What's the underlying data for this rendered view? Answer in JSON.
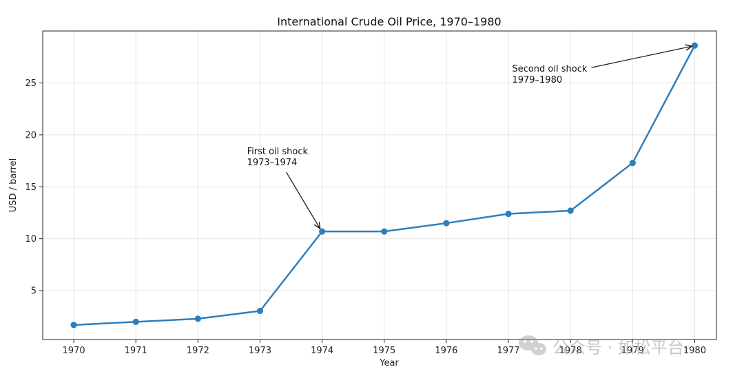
{
  "chart_data": {
    "type": "line",
    "title": "International Crude Oil Price, 1970–1980",
    "xlabel": "Year",
    "ylabel": "USD / barrel",
    "x": [
      1970,
      1971,
      1972,
      1973,
      1974,
      1975,
      1976,
      1977,
      1978,
      1979,
      1980
    ],
    "series": [
      {
        "values": [
          1.7,
          2.0,
          2.3,
          3.05,
          10.7,
          10.7,
          11.5,
          12.4,
          12.7,
          17.3,
          28.6
        ],
        "color": "#2f7ebc",
        "marker": "circle"
      }
    ],
    "xlim": [
      1969.5,
      1980.35
    ],
    "ylim": [
      0.3,
      30.0
    ],
    "x_ticks": [
      1970,
      1971,
      1972,
      1973,
      1974,
      1975,
      1976,
      1977,
      1978,
      1979,
      1980
    ],
    "y_ticks": [
      5,
      10,
      15,
      20,
      25
    ],
    "grid": true,
    "annotations": [
      {
        "lines": [
          "First oil shock",
          "1973–1974"
        ],
        "target_x": 1974,
        "target_y": 10.7
      },
      {
        "lines": [
          "Second oil shock",
          "1979–1980"
        ],
        "target_x": 1980,
        "target_y": 28.6
      }
    ]
  },
  "watermark": {
    "text": "公众号 · 如松平台",
    "icon": "wechat-icon"
  }
}
